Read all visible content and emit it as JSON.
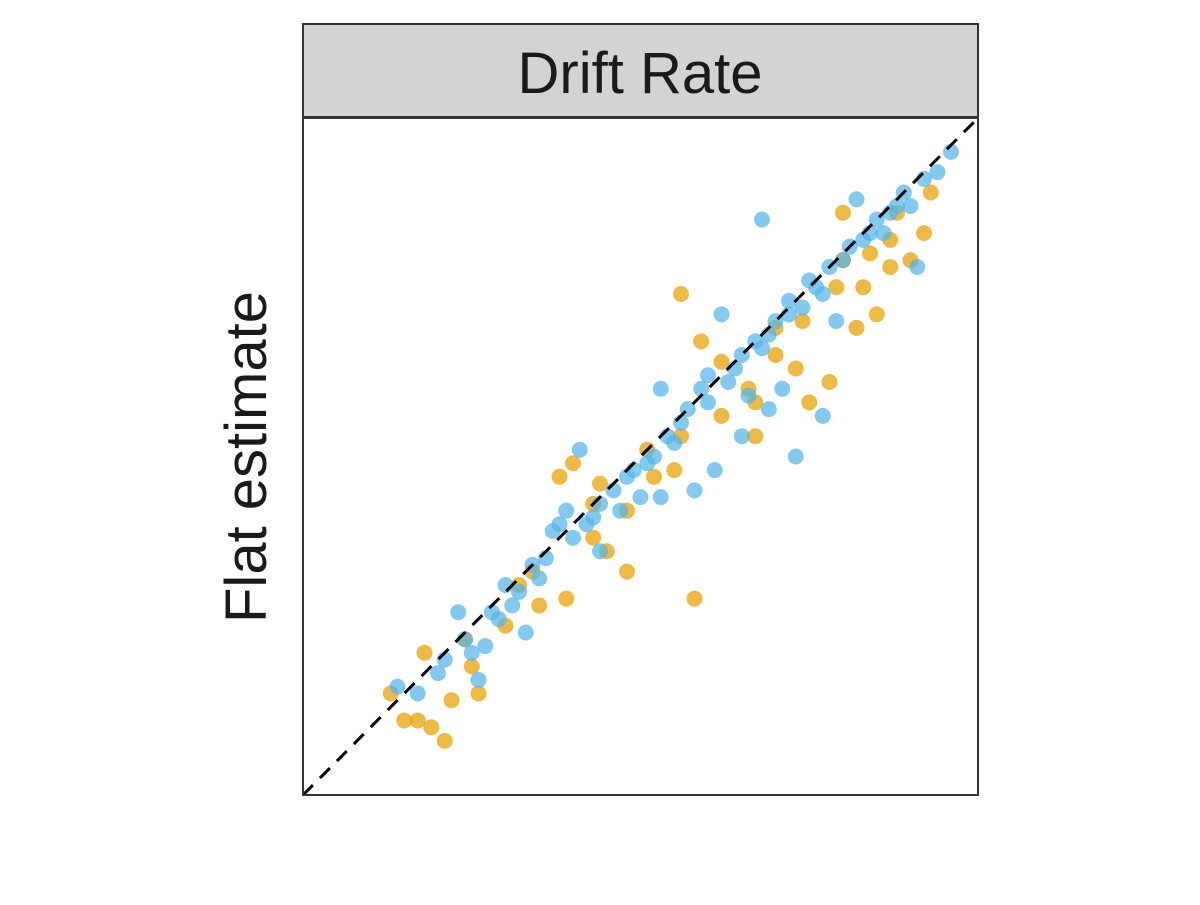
{
  "chart_data": {
    "type": "scatter",
    "title": "Drift Rate",
    "xlabel": "",
    "ylabel": "Flat estimate",
    "xlim": [
      0,
      1
    ],
    "ylim": [
      0,
      1
    ],
    "grid": false,
    "reference_line": {
      "type": "identity",
      "style": "dashed",
      "color": "#000000"
    },
    "series": [
      {
        "name": "orange",
        "color": "#E69F00",
        "points": [
          [
            0.13,
            0.15
          ],
          [
            0.15,
            0.11
          ],
          [
            0.19,
            0.1
          ],
          [
            0.21,
            0.08
          ],
          [
            0.26,
            0.15
          ],
          [
            0.18,
            0.21
          ],
          [
            0.3,
            0.25
          ],
          [
            0.34,
            0.33
          ],
          [
            0.39,
            0.29
          ],
          [
            0.43,
            0.38
          ],
          [
            0.48,
            0.42
          ],
          [
            0.52,
            0.47
          ],
          [
            0.58,
            0.29
          ],
          [
            0.56,
            0.53
          ],
          [
            0.62,
            0.56
          ],
          [
            0.66,
            0.6
          ],
          [
            0.7,
            0.65
          ],
          [
            0.74,
            0.7
          ],
          [
            0.79,
            0.75
          ],
          [
            0.84,
            0.8
          ],
          [
            0.88,
            0.86
          ],
          [
            0.56,
            0.74
          ],
          [
            0.75,
            0.58
          ],
          [
            0.82,
            0.69
          ],
          [
            0.85,
            0.71
          ],
          [
            0.9,
            0.79
          ],
          [
            0.93,
            0.89
          ],
          [
            0.4,
            0.49
          ],
          [
            0.44,
            0.46
          ],
          [
            0.59,
            0.67
          ],
          [
            0.7,
            0.69
          ],
          [
            0.8,
            0.86
          ],
          [
            0.78,
            0.61
          ],
          [
            0.67,
            0.53
          ],
          [
            0.35,
            0.28
          ],
          [
            0.25,
            0.19
          ],
          [
            0.22,
            0.14
          ],
          [
            0.48,
            0.33
          ],
          [
            0.62,
            0.64
          ],
          [
            0.87,
            0.82
          ],
          [
            0.83,
            0.75
          ],
          [
            0.38,
            0.47
          ],
          [
            0.55,
            0.48
          ],
          [
            0.73,
            0.63
          ],
          [
            0.24,
            0.23
          ],
          [
            0.32,
            0.31
          ],
          [
            0.45,
            0.36
          ],
          [
            0.51,
            0.51
          ],
          [
            0.67,
            0.58
          ],
          [
            0.8,
            0.79
          ],
          [
            0.87,
            0.78
          ],
          [
            0.92,
            0.83
          ],
          [
            0.17,
            0.11
          ],
          [
            0.43,
            0.43
          ]
        ]
      },
      {
        "name": "blue",
        "color": "#56B4E9",
        "points": [
          [
            0.14,
            0.16
          ],
          [
            0.17,
            0.15
          ],
          [
            0.2,
            0.18
          ],
          [
            0.24,
            0.23
          ],
          [
            0.28,
            0.27
          ],
          [
            0.32,
            0.3
          ],
          [
            0.36,
            0.35
          ],
          [
            0.4,
            0.38
          ],
          [
            0.44,
            0.43
          ],
          [
            0.48,
            0.47
          ],
          [
            0.52,
            0.5
          ],
          [
            0.56,
            0.55
          ],
          [
            0.6,
            0.58
          ],
          [
            0.64,
            0.63
          ],
          [
            0.68,
            0.66
          ],
          [
            0.72,
            0.71
          ],
          [
            0.76,
            0.75
          ],
          [
            0.8,
            0.79
          ],
          [
            0.84,
            0.83
          ],
          [
            0.88,
            0.87
          ],
          [
            0.92,
            0.91
          ],
          [
            0.96,
            0.95
          ],
          [
            0.94,
            0.92
          ],
          [
            0.9,
            0.87
          ],
          [
            0.68,
            0.85
          ],
          [
            0.71,
            0.6
          ],
          [
            0.73,
            0.5
          ],
          [
            0.77,
            0.56
          ],
          [
            0.91,
            0.78
          ],
          [
            0.65,
            0.53
          ],
          [
            0.26,
            0.17
          ],
          [
            0.33,
            0.24
          ],
          [
            0.41,
            0.51
          ],
          [
            0.53,
            0.6
          ],
          [
            0.62,
            0.71
          ],
          [
            0.82,
            0.88
          ],
          [
            0.86,
            0.83
          ],
          [
            0.58,
            0.45
          ],
          [
            0.38,
            0.4
          ],
          [
            0.44,
            0.36
          ],
          [
            0.5,
            0.44
          ],
          [
            0.66,
            0.59
          ],
          [
            0.74,
            0.72
          ],
          [
            0.79,
            0.7
          ],
          [
            0.55,
            0.52
          ],
          [
            0.47,
            0.42
          ],
          [
            0.23,
            0.27
          ],
          [
            0.3,
            0.31
          ],
          [
            0.27,
            0.22
          ],
          [
            0.35,
            0.32
          ],
          [
            0.42,
            0.4
          ],
          [
            0.57,
            0.57
          ],
          [
            0.63,
            0.61
          ],
          [
            0.69,
            0.68
          ],
          [
            0.75,
            0.76
          ],
          [
            0.81,
            0.81
          ],
          [
            0.87,
            0.86
          ],
          [
            0.61,
            0.48
          ],
          [
            0.69,
            0.57
          ],
          [
            0.53,
            0.44
          ],
          [
            0.37,
            0.39
          ],
          [
            0.25,
            0.21
          ],
          [
            0.29,
            0.26
          ],
          [
            0.34,
            0.34
          ],
          [
            0.39,
            0.42
          ],
          [
            0.46,
            0.45
          ],
          [
            0.51,
            0.49
          ],
          [
            0.59,
            0.6
          ],
          [
            0.65,
            0.65
          ],
          [
            0.7,
            0.7
          ],
          [
            0.78,
            0.78
          ],
          [
            0.85,
            0.85
          ],
          [
            0.21,
            0.2
          ],
          [
            0.31,
            0.28
          ],
          [
            0.43,
            0.41
          ],
          [
            0.49,
            0.48
          ],
          [
            0.54,
            0.53
          ],
          [
            0.6,
            0.62
          ],
          [
            0.67,
            0.67
          ],
          [
            0.72,
            0.73
          ],
          [
            0.77,
            0.74
          ],
          [
            0.83,
            0.82
          ],
          [
            0.89,
            0.89
          ]
        ]
      }
    ]
  }
}
